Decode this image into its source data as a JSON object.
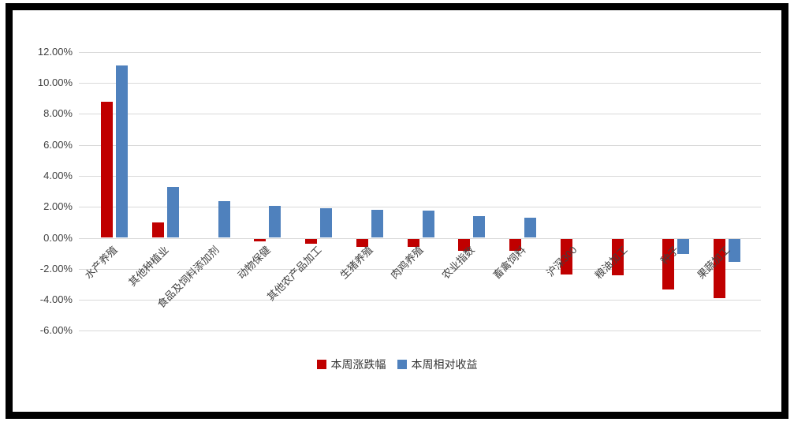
{
  "chart_data": {
    "type": "bar",
    "title": "",
    "xlabel": "",
    "ylabel": "",
    "unit": "%",
    "grid": true,
    "legend_position": "bottom",
    "ylim": [
      -6,
      12
    ],
    "y_ticks": [
      "12.00%",
      "10.00%",
      "8.00%",
      "6.00%",
      "4.00%",
      "2.00%",
      "0.00%",
      "-2.00%",
      "-4.00%",
      "-6.00%"
    ],
    "y_tick_values": [
      12,
      10,
      8,
      6,
      4,
      2,
      0,
      -2,
      -4,
      -6
    ],
    "categories": [
      "水产养殖",
      "其他种植业",
      "食品及饲料添加剂",
      "动物保健",
      "其他农产品加工",
      "生猪养殖",
      "肉鸡养殖",
      "农业指数",
      "畜禽饲料",
      "沪深300",
      "粮油加工",
      "种子",
      "果蔬加工"
    ],
    "series": [
      {
        "name": "本周涨跌幅",
        "color": "#c00000",
        "values": [
          8.8,
          1.0,
          0.0,
          -0.2,
          -0.35,
          -0.55,
          -0.55,
          -0.8,
          -0.8,
          -2.3,
          -2.35,
          -3.3,
          -3.85
        ]
      },
      {
        "name": "本周相对收益",
        "color": "#4f81bd",
        "values": [
          11.1,
          3.3,
          2.35,
          2.05,
          1.9,
          1.8,
          1.75,
          1.4,
          1.3,
          0.0,
          0.0,
          -1.0,
          -1.5
        ]
      }
    ]
  },
  "colors": {
    "grid": "#d9d9d9",
    "axis_text": "#404040",
    "frame": "#000000"
  }
}
